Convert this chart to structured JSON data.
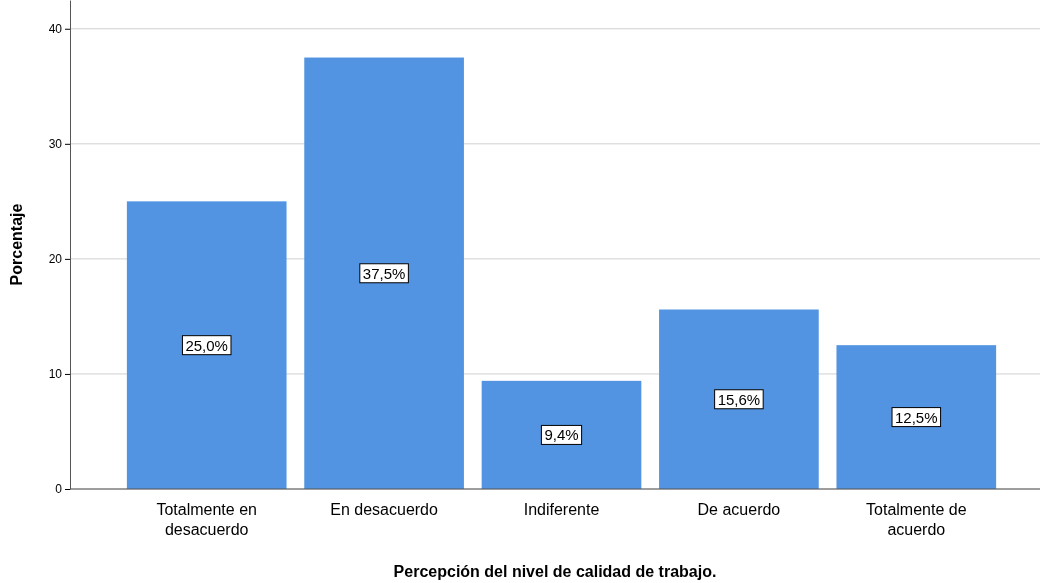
{
  "chart_data": {
    "type": "bar",
    "xlabel": "Percepción del nivel de calidad de trabajo.",
    "ylabel": "Porcentaje",
    "categories": [
      "Totalmente en desacuerdo",
      "En desacuerdo",
      "Indiferente",
      "De acuerdo",
      "Totalmente de acuerdo"
    ],
    "values": [
      25.0,
      37.5,
      9.4,
      15.6,
      12.5
    ],
    "value_labels": [
      "25,0%",
      "37,5%",
      "9,4%",
      "15,6%",
      "12,5%"
    ],
    "color": "#5294e2",
    "ylim": [
      0,
      42.5
    ],
    "yticks": [
      0,
      10,
      20,
      30,
      40
    ],
    "grid": "y"
  }
}
